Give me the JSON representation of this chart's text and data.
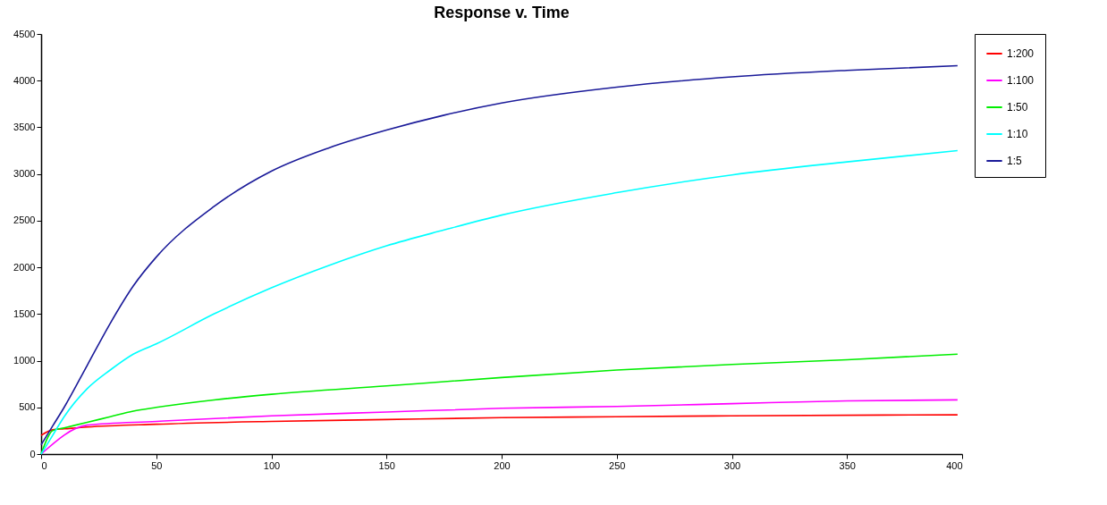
{
  "chart_data": {
    "type": "line",
    "title": "Response v. Time",
    "legend": "right",
    "grid": false,
    "marker": "none",
    "line_style": "solid",
    "xlim": [
      0,
      400
    ],
    "xticks": [
      0,
      50,
      100,
      150,
      200,
      250,
      300,
      350,
      400
    ],
    "ylim": [
      0,
      4500
    ],
    "yticks": [
      0,
      500,
      1000,
      1500,
      2000,
      2500,
      3000,
      3500,
      4000,
      4500
    ],
    "series": [
      {
        "name": "1:200",
        "color": "#ff0000",
        "x": [
          0,
          5,
          10,
          20,
          50,
          100,
          150,
          200,
          250,
          300,
          398
        ],
        "values": [
          200,
          260,
          270,
          290,
          320,
          350,
          370,
          390,
          400,
          410,
          420
        ]
      },
      {
        "name": "1:100",
        "color": "#ff00ff",
        "x": [
          0,
          20,
          50,
          100,
          150,
          200,
          250,
          300,
          350,
          398
        ],
        "values": [
          0,
          310,
          350,
          410,
          450,
          490,
          510,
          540,
          570,
          580
        ]
      },
      {
        "name": "1:50",
        "color": "#00ee00",
        "x": [
          0,
          5,
          10,
          20,
          30,
          40,
          50,
          75,
          100,
          150,
          200,
          250,
          300,
          350,
          398
        ],
        "values": [
          0,
          250,
          280,
          340,
          400,
          460,
          500,
          580,
          640,
          730,
          820,
          900,
          960,
          1010,
          1070
        ]
      },
      {
        "name": "1:10",
        "color": "#00ffff",
        "x": [
          0,
          5,
          10,
          20,
          30,
          40,
          50,
          75,
          100,
          125,
          150,
          175,
          200,
          250,
          300,
          350,
          398
        ],
        "values": [
          0,
          200,
          400,
          700,
          900,
          1070,
          1180,
          1500,
          1780,
          2020,
          2230,
          2400,
          2560,
          2800,
          2990,
          3130,
          3250
        ]
      },
      {
        "name": "1:5",
        "color": "#1a1a99",
        "x": [
          0,
          5,
          10,
          20,
          30,
          40,
          50,
          75,
          100,
          125,
          150,
          175,
          200,
          250,
          300,
          350,
          398
        ],
        "values": [
          100,
          300,
          500,
          950,
          1400,
          1800,
          2110,
          2650,
          3030,
          3280,
          3470,
          3630,
          3760,
          3930,
          4040,
          4110,
          4160
        ]
      }
    ]
  }
}
